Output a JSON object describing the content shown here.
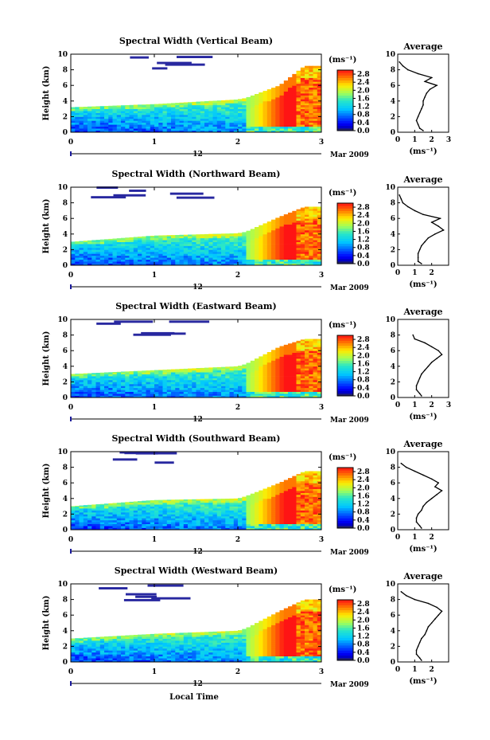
{
  "chart_data": [
    {
      "type": "heatmap",
      "title": "Spectral Width (Vertical Beam)",
      "ylabel": "Height (km)",
      "x_ticks": [
        "0",
        "1",
        "2",
        "3"
      ],
      "y_ticks": [
        "0",
        "2",
        "4",
        "6",
        "8",
        "10"
      ],
      "xlim": [
        0,
        3
      ],
      "ylim": [
        0,
        10
      ],
      "secondary_axis_label": "12",
      "date_label": "Mar 2009",
      "colorbar": {
        "unit": "(ms⁻¹)",
        "ticks": [
          "0.0",
          "0.4",
          "0.8",
          "1.2",
          "1.6",
          "2.0",
          "2.4",
          "2.8"
        ],
        "range": [
          0,
          3.0
        ]
      },
      "boundary_layer_top_km": [
        [
          0,
          3.2
        ],
        [
          1,
          3.6
        ],
        [
          2,
          4.2
        ],
        [
          2.1,
          4.4
        ],
        [
          2.5,
          6.0
        ],
        [
          2.8,
          8.5
        ],
        [
          3,
          8.5
        ]
      ],
      "high_width_onset_hour": 2.1,
      "profile": {
        "title": "Average",
        "xlabel": "(ms⁻¹)",
        "x_ticks": [
          "0",
          "1",
          "2",
          "3"
        ],
        "y_ticks": [
          "0",
          "2",
          "4",
          "6",
          "8",
          "10"
        ],
        "xlim": [
          0,
          3
        ],
        "ylim": [
          0,
          10
        ],
        "heights_km": [
          0.2,
          0.5,
          1.0,
          1.5,
          2.0,
          2.5,
          3.0,
          3.5,
          4.0,
          4.5,
          5.0,
          5.5,
          6.0,
          6.5,
          7.0,
          7.5,
          8.0,
          8.5,
          9.0
        ],
        "values": [
          1.5,
          1.3,
          1.2,
          1.1,
          1.2,
          1.3,
          1.4,
          1.5,
          1.5,
          1.6,
          1.7,
          1.9,
          2.3,
          1.6,
          2.0,
          1.2,
          0.6,
          0.3,
          0.1
        ]
      }
    },
    {
      "type": "heatmap",
      "title": "Spectral Width (Northward Beam)",
      "ylabel": "Height (km)",
      "x_ticks": [
        "0",
        "1",
        "2",
        "3"
      ],
      "y_ticks": [
        "0",
        "2",
        "4",
        "6",
        "8",
        "10"
      ],
      "xlim": [
        0,
        3
      ],
      "ylim": [
        0,
        10
      ],
      "secondary_axis_label": "12",
      "date_label": "Mar 2009",
      "colorbar": {
        "unit": "(ms⁻¹)",
        "ticks": [
          "0.0",
          "0.4",
          "0.8",
          "1.2",
          "1.6",
          "2.0",
          "2.4",
          "2.8"
        ],
        "range": [
          0,
          3.0
        ]
      },
      "boundary_layer_top_km": [
        [
          0,
          3.0
        ],
        [
          1,
          3.8
        ],
        [
          2,
          4.1
        ],
        [
          2.1,
          4.3
        ],
        [
          2.5,
          6.2
        ],
        [
          2.8,
          7.5
        ],
        [
          3,
          7.5
        ]
      ],
      "high_width_onset_hour": 2.1,
      "profile": {
        "title": "Average",
        "xlabel": "(ms⁻¹)",
        "x_ticks": [
          "0",
          "1",
          "2"
        ],
        "y_ticks": [
          "0",
          "2",
          "4",
          "6",
          "8",
          "10"
        ],
        "xlim": [
          0,
          3
        ],
        "ylim": [
          0,
          10
        ],
        "heights_km": [
          0.2,
          0.5,
          1.0,
          1.5,
          2.0,
          2.5,
          3.0,
          3.5,
          4.0,
          4.5,
          5.0,
          5.5,
          6.0,
          6.5,
          7.0,
          7.5,
          8.0,
          8.5,
          9.0
        ],
        "values": [
          1.4,
          1.2,
          1.2,
          1.2,
          1.3,
          1.4,
          1.6,
          1.8,
          2.2,
          2.7,
          2.4,
          2.0,
          2.5,
          1.5,
          1.0,
          0.6,
          0.3,
          0.2,
          0.1
        ]
      }
    },
    {
      "type": "heatmap",
      "title": "Spectral Width (Eastward Beam)",
      "ylabel": "Height (km)",
      "x_ticks": [
        "0",
        "1",
        "2",
        "3"
      ],
      "y_ticks": [
        "0",
        "2",
        "4",
        "6",
        "8",
        "10"
      ],
      "xlim": [
        0,
        3
      ],
      "ylim": [
        0,
        10
      ],
      "secondary_axis_label": "12",
      "date_label": "Mar 2009",
      "colorbar": {
        "unit": "(ms⁻¹)",
        "ticks": [
          "0.0",
          "0.4",
          "0.8",
          "1.2",
          "1.6",
          "2.0",
          "2.4",
          "2.8"
        ],
        "range": [
          0,
          3.0
        ]
      },
      "boundary_layer_top_km": [
        [
          0,
          3.0
        ],
        [
          1,
          3.5
        ],
        [
          2,
          4.0
        ],
        [
          2.1,
          4.3
        ],
        [
          2.5,
          6.5
        ],
        [
          2.8,
          7.5
        ],
        [
          3,
          7.5
        ]
      ],
      "high_width_onset_hour": 2.1,
      "profile": {
        "title": "Average",
        "xlabel": "(ms⁻¹)",
        "x_ticks": [
          "0",
          "1",
          "2",
          "3"
        ],
        "y_ticks": [
          "0",
          "2",
          "4",
          "6",
          "8",
          "10"
        ],
        "xlim": [
          0,
          3
        ],
        "ylim": [
          0,
          10
        ],
        "heights_km": [
          0.2,
          0.5,
          1.0,
          1.5,
          2.0,
          2.5,
          3.0,
          3.5,
          4.0,
          4.5,
          5.0,
          5.5,
          6.0,
          6.5,
          7.0,
          7.5,
          8.0
        ],
        "values": [
          1.4,
          1.3,
          1.1,
          1.1,
          1.2,
          1.3,
          1.4,
          1.6,
          1.8,
          2.0,
          2.3,
          2.6,
          2.4,
          2.0,
          1.6,
          1.0,
          0.9
        ]
      }
    },
    {
      "type": "heatmap",
      "title": "Spectral Width (Southward Beam)",
      "ylabel": "Height (km)",
      "x_ticks": [
        "0",
        "1",
        "2",
        "3"
      ],
      "y_ticks": [
        "0",
        "2",
        "4",
        "6",
        "8",
        "10"
      ],
      "xlim": [
        0,
        3
      ],
      "ylim": [
        0,
        10
      ],
      "secondary_axis_label": "12",
      "date_label": "Mar 2009",
      "colorbar": {
        "unit": "(ms⁻¹)",
        "ticks": [
          "0.0",
          "0.4",
          "0.8",
          "1.2",
          "1.6",
          "2.0",
          "2.4",
          "2.8"
        ],
        "range": [
          0,
          3.0
        ]
      },
      "boundary_layer_top_km": [
        [
          0,
          3.0
        ],
        [
          1,
          3.8
        ],
        [
          2,
          4.0
        ],
        [
          2.1,
          4.3
        ],
        [
          2.5,
          6.0
        ],
        [
          2.8,
          7.5
        ],
        [
          3,
          7.5
        ]
      ],
      "high_width_onset_hour": 2.1,
      "profile": {
        "title": "Average",
        "xlabel": "(ms⁻¹)",
        "x_ticks": [
          "0",
          "1",
          "2"
        ],
        "y_ticks": [
          "0",
          "2",
          "4",
          "6",
          "8",
          "10"
        ],
        "xlim": [
          0,
          3
        ],
        "ylim": [
          0,
          10
        ],
        "heights_km": [
          0.2,
          0.5,
          1.0,
          1.5,
          2.0,
          2.5,
          3.0,
          3.5,
          4.0,
          4.5,
          5.0,
          5.5,
          6.0,
          6.5,
          7.0,
          7.5,
          8.0,
          8.5
        ],
        "values": [
          1.4,
          1.3,
          1.1,
          1.1,
          1.2,
          1.4,
          1.5,
          1.7,
          2.0,
          2.3,
          2.6,
          2.2,
          2.4,
          2.0,
          1.5,
          1.0,
          0.5,
          0.2
        ]
      }
    },
    {
      "type": "heatmap",
      "title": "Spectral Width (Westward Beam)",
      "ylabel": "Height (km)",
      "xlabel": "Local Time",
      "x_ticks": [
        "0",
        "1",
        "2",
        "3"
      ],
      "y_ticks": [
        "0",
        "2",
        "4",
        "6",
        "8",
        "10"
      ],
      "xlim": [
        0,
        3
      ],
      "ylim": [
        0,
        10
      ],
      "secondary_axis_label": "12",
      "date_label": "Mar 2009",
      "colorbar": {
        "unit": "(ms⁻¹)",
        "ticks": [
          "0.0",
          "0.4",
          "0.8",
          "1.2",
          "1.6",
          "2.0",
          "2.4",
          "2.8"
        ],
        "range": [
          0,
          3.0
        ]
      },
      "boundary_layer_top_km": [
        [
          0,
          3.0
        ],
        [
          1,
          3.6
        ],
        [
          2,
          4.0
        ],
        [
          2.1,
          4.3
        ],
        [
          2.5,
          6.5
        ],
        [
          2.8,
          8.0
        ],
        [
          3,
          8.0
        ]
      ],
      "high_width_onset_hour": 2.1,
      "profile": {
        "title": "Average",
        "xlabel": "(ms⁻¹)",
        "x_ticks": [
          "0",
          "1",
          "2"
        ],
        "y_ticks": [
          "0",
          "2",
          "4",
          "6",
          "8",
          "10"
        ],
        "xlim": [
          0,
          3
        ],
        "ylim": [
          0,
          10
        ],
        "heights_km": [
          0.2,
          0.5,
          1.0,
          1.5,
          2.0,
          2.5,
          3.0,
          3.5,
          4.0,
          4.5,
          5.0,
          5.5,
          6.0,
          6.5,
          7.0,
          7.5,
          8.0,
          8.5,
          9.0
        ],
        "values": [
          1.4,
          1.3,
          1.1,
          1.1,
          1.2,
          1.3,
          1.4,
          1.6,
          1.7,
          1.8,
          2.0,
          2.2,
          2.4,
          2.6,
          2.3,
          1.8,
          1.0,
          0.5,
          0.2
        ]
      }
    }
  ]
}
